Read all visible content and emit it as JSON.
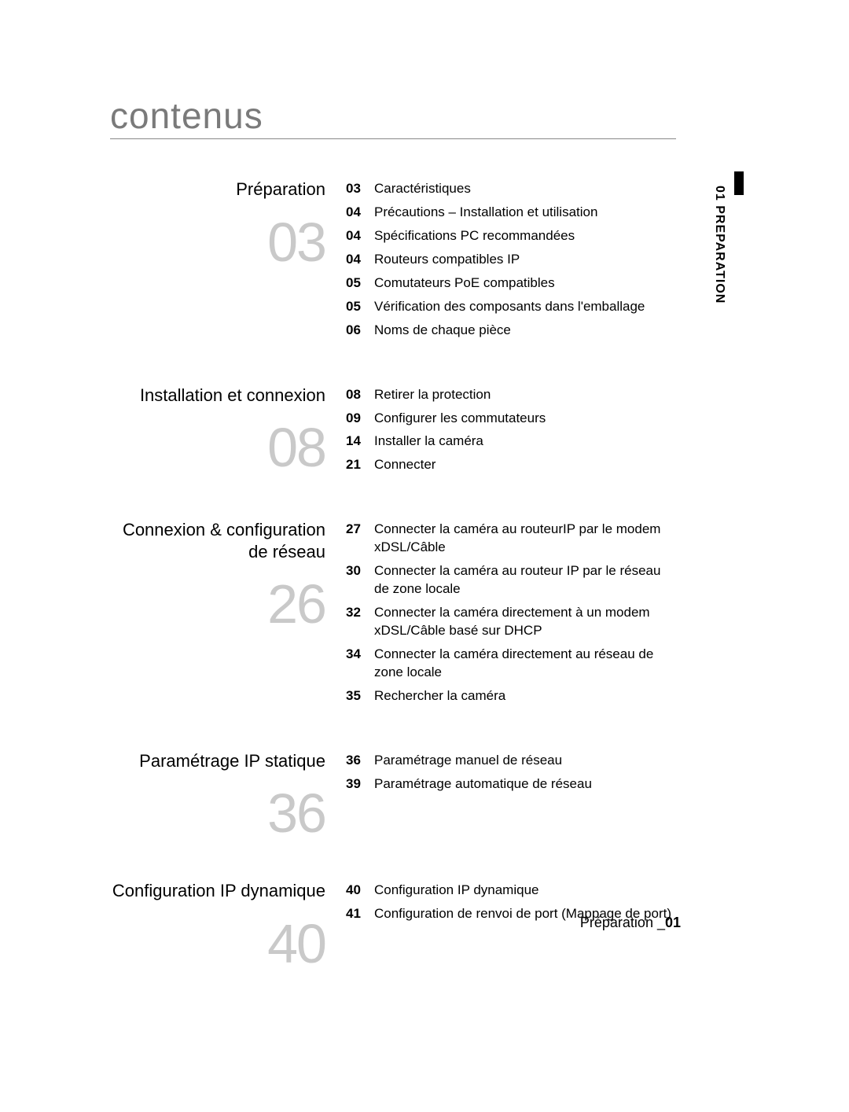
{
  "title": "contenus",
  "side_tab": {
    "text": "01  PREPARATION"
  },
  "footer": {
    "label": "Préparation _",
    "page": "01"
  },
  "colors": {
    "title_color": "#7a7a7a",
    "rule_color": "#888888",
    "big_number_color": "#c9c9c9",
    "text_color": "#000000",
    "side_bar_color": "#000000",
    "background": "#ffffff"
  },
  "sections": [
    {
      "title": "Préparation",
      "big": "03",
      "entries": [
        {
          "pg": "03",
          "label": "Caractéristiques"
        },
        {
          "pg": "04",
          "label": "Précautions – Installation et utilisation"
        },
        {
          "pg": "04",
          "label": "Spécifications PC recommandées"
        },
        {
          "pg": "04",
          "label": "Routeurs compatibles IP"
        },
        {
          "pg": "05",
          "label": "Comutateurs PoE compatibles"
        },
        {
          "pg": "05",
          "label": "Vérification des composants dans l'emballage"
        },
        {
          "pg": "06",
          "label": "Noms de chaque pièce"
        }
      ]
    },
    {
      "title": "Installation et connexion",
      "big": "08",
      "entries": [
        {
          "pg": "08",
          "label": "Retirer la protection"
        },
        {
          "pg": "09",
          "label": "Configurer les commutateurs"
        },
        {
          "pg": "14",
          "label": "Installer la caméra"
        },
        {
          "pg": "21",
          "label": "Connecter"
        }
      ]
    },
    {
      "title": "Connexion & configuration de réseau",
      "big": "26",
      "entries": [
        {
          "pg": "27",
          "label": "Connecter la caméra au routeurIP par le modem xDSL/Câble"
        },
        {
          "pg": "30",
          "label": "Connecter la caméra au routeur IP par le réseau de zone locale"
        },
        {
          "pg": "32",
          "label": "Connecter la caméra directement à un modem xDSL/Câble basé sur DHCP"
        },
        {
          "pg": "34",
          "label": "Connecter la caméra directement au réseau de zone locale"
        },
        {
          "pg": "35",
          "label": "Rechercher la caméra"
        }
      ]
    },
    {
      "title": "Paramétrage IP statique",
      "big": "36",
      "entries": [
        {
          "pg": "36",
          "label": "Paramétrage manuel de réseau"
        },
        {
          "pg": "39",
          "label": "Paramétrage automatique de réseau"
        }
      ]
    },
    {
      "title": "Configuration IP dynamique",
      "big": "40",
      "entries": [
        {
          "pg": "40",
          "label": "Configuration IP dynamique"
        },
        {
          "pg": "41",
          "label": "Configuration de renvoi de port (Mappage de port)"
        }
      ]
    }
  ]
}
